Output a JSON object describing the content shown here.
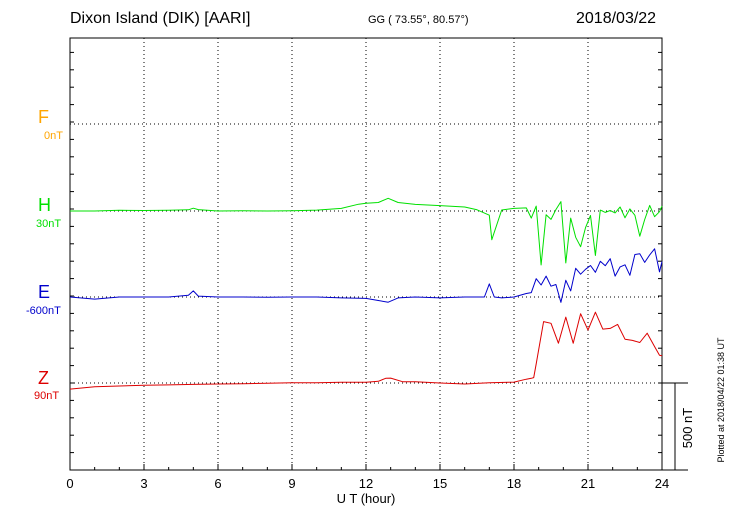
{
  "header": {
    "station": "Dixon Island (DIK)  [AARI]",
    "coords": "GG ( 73.55°,  80.57°)",
    "date": "2018/03/22"
  },
  "footer": {
    "plotted": "Plotted at 2018/04/22 01:38 UT"
  },
  "chart_data": {
    "type": "line",
    "xlabel": "U T (hour)",
    "xlim": [
      0,
      24
    ],
    "xticks": [
      "0",
      "3",
      "6",
      "9",
      "12",
      "15",
      "18",
      "21",
      "24"
    ],
    "scale_bar_label": "500 nT",
    "grid": true,
    "series": [
      {
        "name": "F",
        "baseline": "0nT",
        "color": "#FFA500",
        "x": [],
        "y": []
      },
      {
        "name": "H",
        "baseline": "30nT",
        "color": "#00E000",
        "x": [
          0,
          1,
          2,
          3,
          4,
          4.8,
          5,
          5.2,
          6,
          7,
          8,
          9,
          10,
          11,
          11.7,
          12,
          12.5,
          12.9,
          13.3,
          14,
          15,
          16,
          16.5,
          17.0,
          17.1,
          17.5,
          18,
          18.5,
          18.7,
          18.9,
          19.1,
          19.3,
          19.5,
          19.7,
          19.9,
          20.1,
          20.3,
          20.5,
          20.7,
          20.9,
          21.1,
          21.3,
          21.5,
          21.7,
          21.9,
          22.1,
          22.3,
          22.5,
          22.7,
          22.9,
          23.1,
          23.3,
          23.5,
          23.7,
          23.9,
          24
        ],
        "y": [
          30,
          30,
          34,
          33,
          34,
          37,
          46,
          38,
          30,
          31,
          30,
          32,
          35,
          45,
          69,
          75,
          79,
          103,
          79,
          68,
          61,
          53,
          37,
          6,
          -135,
          36,
          45,
          48,
          -11,
          58,
          -280,
          8,
          -18,
          38,
          84,
          -268,
          -11,
          -121,
          -175,
          -66,
          4,
          -226,
          35,
          22,
          33,
          19,
          53,
          -9,
          42,
          5,
          -115,
          -19,
          62,
          -3,
          26,
          58
        ]
      },
      {
        "name": "E",
        "baseline": "-600nT",
        "color": "#0000CC",
        "x": [
          0,
          1,
          2,
          3,
          4,
          4.8,
          5,
          5.2,
          6,
          7,
          8,
          9,
          10,
          11,
          12,
          12.5,
          12.9,
          13.3,
          14,
          15,
          16,
          16.8,
          17.0,
          17.2,
          17.5,
          18,
          18.5,
          18.7,
          18.9,
          19.1,
          19.3,
          19.5,
          19.7,
          19.9,
          20.1,
          20.3,
          20.5,
          20.7,
          20.9,
          21.1,
          21.3,
          21.5,
          21.7,
          21.9,
          22.1,
          22.3,
          22.5,
          22.7,
          22.9,
          23.1,
          23.3,
          23.5,
          23.7,
          23.9,
          24
        ],
        "y": [
          -600,
          -612,
          -600,
          -600,
          -600,
          -590,
          -565,
          -595,
          -600,
          -600,
          -602,
          -600,
          -600,
          -605,
          -608,
          -620,
          -630,
          -605,
          -600,
          -605,
          -600,
          -600,
          -525,
          -600,
          -605,
          -600,
          -580,
          -575,
          -495,
          -531,
          -480,
          -538,
          -528,
          -631,
          -504,
          -565,
          -435,
          -469,
          -441,
          -419,
          -458,
          -395,
          -420,
          -380,
          -480,
          -427,
          -415,
          -475,
          -356,
          -352,
          -401,
          -358,
          -323,
          -456,
          -396
        ]
      },
      {
        "name": "Z",
        "baseline": "90nT",
        "color": "#DD0000",
        "x": [
          0,
          1,
          2,
          3,
          4,
          5,
          6,
          7,
          8,
          9,
          10,
          11,
          12,
          12.5,
          12.8,
          13,
          13.5,
          14,
          15,
          16,
          17,
          18,
          18.5,
          18.7,
          18.8,
          18.9,
          19.2,
          19.5,
          19.8,
          20.1,
          20.4,
          20.7,
          21.0,
          21.3,
          21.6,
          21.9,
          22.2,
          22.5,
          22.8,
          23.1,
          23.4,
          23.7,
          23.9,
          24
        ],
        "y": [
          55,
          68,
          73,
          77,
          79,
          82,
          84,
          86,
          89,
          91,
          92,
          94,
          94,
          100,
          117,
          118,
          97,
          97,
          90,
          84,
          91,
          95,
          112,
          117,
          121,
          200,
          443,
          433,
          319,
          469,
          318,
          488,
          394,
          497,
          400,
          404,
          427,
          342,
          335,
          323,
          376,
          299,
          250,
          247
        ]
      }
    ]
  }
}
